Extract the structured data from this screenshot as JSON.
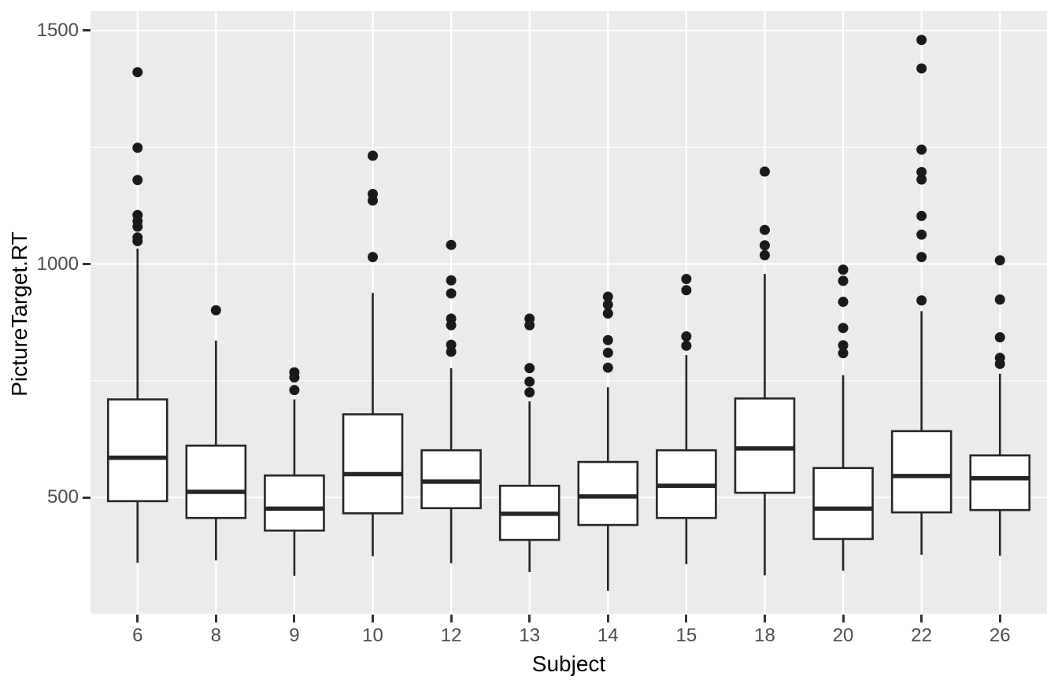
{
  "figure": {
    "background": "#FFFFFF",
    "panel_bg": "#EBEBEB",
    "grid_color": "#FFFFFF",
    "box_stroke": "#262626",
    "box_fill": "#FFFFFF",
    "outlier_color": "#1A1A1A",
    "tick_color": "#333333",
    "tick_label_color": "#4D4D4D",
    "axis_title_color": "#000000"
  },
  "chart_data": {
    "type": "boxplot",
    "title": "",
    "xlabel": "Subject",
    "ylabel": "PictureTarget.RT",
    "categories": [
      "6",
      "8",
      "9",
      "10",
      "12",
      "13",
      "14",
      "15",
      "18",
      "20",
      "22",
      "26"
    ],
    "y_ticks": [
      500,
      1000,
      1500
    ],
    "y_minor_ticks": [
      250,
      750,
      1250
    ],
    "ylim": [
      249,
      1542
    ],
    "grid": "on",
    "legend": "none",
    "series": [
      {
        "subject": "6",
        "whisker_low": 360,
        "q1": 492,
        "median": 585,
        "q3": 710,
        "whisker_high": 1033,
        "outliers": [
          1049,
          1057,
          1080,
          1092,
          1105,
          1180,
          1249,
          1411
        ]
      },
      {
        "subject": "8",
        "whisker_low": 365,
        "q1": 456,
        "median": 512,
        "q3": 611,
        "whisker_high": 836,
        "outliers": [
          901
        ]
      },
      {
        "subject": "9",
        "whisker_low": 332,
        "q1": 429,
        "median": 476,
        "q3": 547,
        "whisker_high": 710,
        "outliers": [
          730,
          757,
          768
        ]
      },
      {
        "subject": "10",
        "whisker_low": 374,
        "q1": 466,
        "median": 550,
        "q3": 678,
        "whisker_high": 938,
        "outliers": [
          1015,
          1136,
          1150,
          1232
        ]
      },
      {
        "subject": "12",
        "whisker_low": 359,
        "q1": 477,
        "median": 534,
        "q3": 601,
        "whisker_high": 777,
        "outliers": [
          812,
          827,
          869,
          883,
          937,
          965,
          1041
        ]
      },
      {
        "subject": "13",
        "whisker_low": 340,
        "q1": 409,
        "median": 465,
        "q3": 525,
        "whisker_high": 706,
        "outliers": [
          725,
          748,
          777,
          869,
          883
        ]
      },
      {
        "subject": "14",
        "whisker_low": 300,
        "q1": 441,
        "median": 502,
        "q3": 576,
        "whisker_high": 736,
        "outliers": [
          778,
          810,
          837,
          894,
          913,
          930
        ]
      },
      {
        "subject": "15",
        "whisker_low": 357,
        "q1": 456,
        "median": 525,
        "q3": 601,
        "whisker_high": 805,
        "outliers": [
          825,
          845,
          944,
          968
        ]
      },
      {
        "subject": "18",
        "whisker_low": 333,
        "q1": 510,
        "median": 605,
        "q3": 712,
        "whisker_high": 979,
        "outliers": [
          1019,
          1040,
          1073,
          1198
        ]
      },
      {
        "subject": "20",
        "whisker_low": 343,
        "q1": 411,
        "median": 476,
        "q3": 563,
        "whisker_high": 762,
        "outliers": [
          809,
          826,
          863,
          919,
          964,
          988
        ]
      },
      {
        "subject": "22",
        "whisker_low": 377,
        "q1": 468,
        "median": 546,
        "q3": 642,
        "whisker_high": 899,
        "outliers": [
          922,
          1015,
          1063,
          1103,
          1181,
          1197,
          1245,
          1419,
          1480
        ]
      },
      {
        "subject": "26",
        "whisker_low": 375,
        "q1": 473,
        "median": 541,
        "q3": 590,
        "whisker_high": 765,
        "outliers": [
          786,
          799,
          843,
          924,
          1008
        ]
      }
    ]
  }
}
